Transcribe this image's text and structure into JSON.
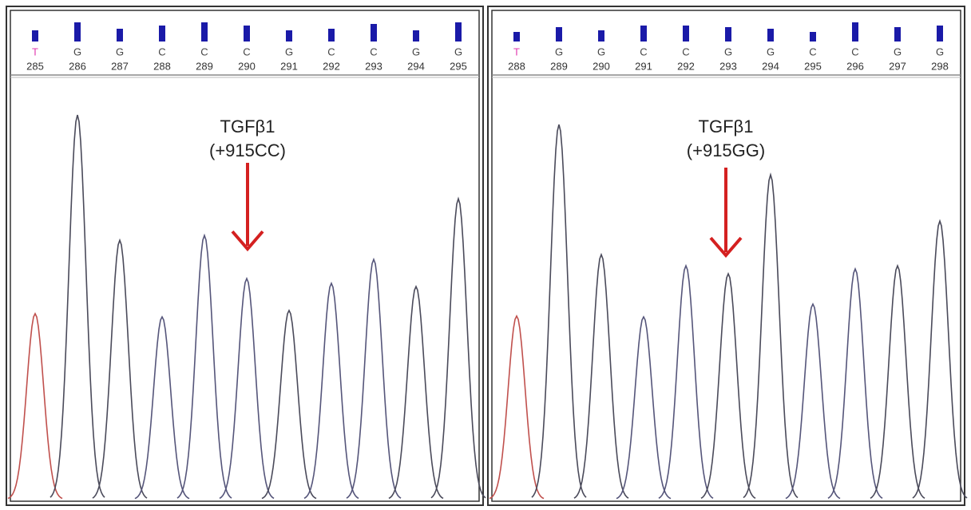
{
  "panels": [
    {
      "annotation": {
        "title": "TGFβ1",
        "genotype": "(+915CC)"
      },
      "bases": [
        {
          "base": "T",
          "position": "285",
          "quality": 14,
          "peak": 233
        },
        {
          "base": "G",
          "position": "286",
          "quality": 24,
          "peak": 482
        },
        {
          "base": "G",
          "position": "287",
          "quality": 16,
          "peak": 325
        },
        {
          "base": "C",
          "position": "288",
          "quality": 20,
          "peak": 229
        },
        {
          "base": "C",
          "position": "289",
          "quality": 24,
          "peak": 331
        },
        {
          "base": "C",
          "position": "290",
          "quality": 20,
          "peak": 277
        },
        {
          "base": "G",
          "position": "291",
          "quality": 14,
          "peak": 237
        },
        {
          "base": "C",
          "position": "292",
          "quality": 16,
          "peak": 271
        },
        {
          "base": "C",
          "position": "293",
          "quality": 22,
          "peak": 301
        },
        {
          "base": "G",
          "position": "294",
          "quality": 14,
          "peak": 267
        },
        {
          "base": "G",
          "position": "295",
          "quality": 24,
          "peak": 377
        }
      ]
    },
    {
      "annotation": {
        "title": "TGFβ1",
        "genotype": "(+915GG)"
      },
      "bases": [
        {
          "base": "T",
          "position": "288",
          "quality": 12,
          "peak": 230
        },
        {
          "base": "G",
          "position": "289",
          "quality": 18,
          "peak": 470
        },
        {
          "base": "G",
          "position": "290",
          "quality": 14,
          "peak": 307
        },
        {
          "base": "C",
          "position": "291",
          "quality": 20,
          "peak": 229
        },
        {
          "base": "C",
          "position": "292",
          "quality": 20,
          "peak": 293
        },
        {
          "base": "G",
          "position": "293",
          "quality": 18,
          "peak": 283
        },
        {
          "base": "G",
          "position": "294",
          "quality": 16,
          "peak": 407
        },
        {
          "base": "C",
          "position": "295",
          "quality": 12,
          "peak": 245
        },
        {
          "base": "C",
          "position": "296",
          "quality": 24,
          "peak": 289
        },
        {
          "base": "G",
          "position": "297",
          "quality": 18,
          "peak": 293
        },
        {
          "base": "G",
          "position": "298",
          "quality": 20,
          "peak": 349
        }
      ]
    }
  ],
  "base_colors": {
    "T": "#e03bb0",
    "G": "#444444",
    "C": "#444444"
  },
  "trace_colors": {
    "T": "#c0504d",
    "G": "#4a4a5a",
    "C": "#55557a"
  },
  "quality_color": "#1a1aa8",
  "arrow_color": "#d42020"
}
